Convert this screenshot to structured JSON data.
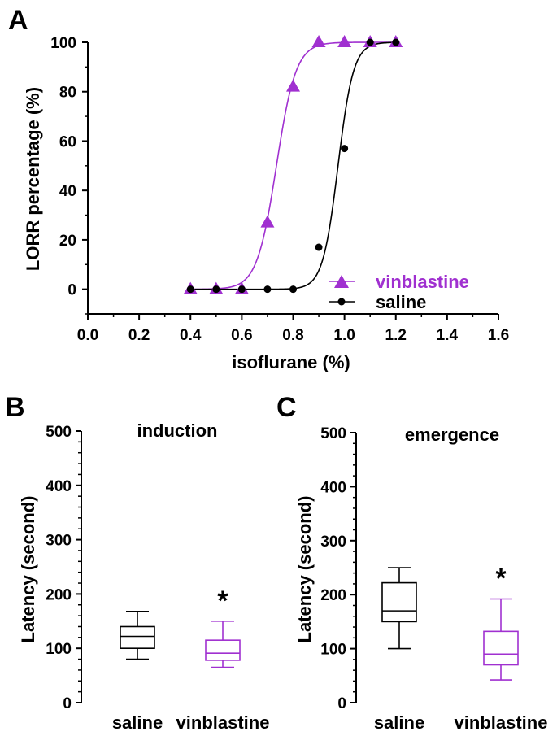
{
  "chart_data": [
    {
      "panel": "A",
      "type": "line",
      "title": "",
      "xlabel": "isoflurane (%)",
      "ylabel": "LORR percentage (%)",
      "xlim": [
        0.0,
        1.6
      ],
      "ylim": [
        -10,
        100
      ],
      "xticks": [
        "0.0",
        "0.2",
        "0.4",
        "0.6",
        "0.8",
        "1.0",
        "1.2",
        "1.4",
        "1.6"
      ],
      "yticks": [
        "0",
        "20",
        "40",
        "60",
        "80",
        "100"
      ],
      "legend": [
        "vinblastine",
        "saline"
      ],
      "legend_position": "bottom-right",
      "series": [
        {
          "name": "vinblastine",
          "color": "#a030d0",
          "marker": "triangle",
          "x": [
            0.4,
            0.5,
            0.6,
            0.7,
            0.8,
            0.9,
            1.0,
            1.1,
            1.2
          ],
          "y": [
            0,
            0,
            0,
            27,
            82,
            100,
            100,
            100,
            100
          ],
          "fit": {
            "ec50": 0.735,
            "hill": 0.038
          }
        },
        {
          "name": "saline",
          "color": "#000000",
          "marker": "circle",
          "x": [
            0.4,
            0.5,
            0.6,
            0.7,
            0.8,
            0.9,
            1.0,
            1.1,
            1.2
          ],
          "y": [
            0,
            0,
            0,
            0,
            0,
            17,
            57,
            100,
            100
          ],
          "fit": {
            "ec50": 0.975,
            "hill": 0.03
          }
        }
      ]
    },
    {
      "panel": "B",
      "type": "box",
      "title": "induction",
      "xlabel": "",
      "ylabel": "Latency (second)",
      "ylim": [
        0,
        500
      ],
      "yticks": [
        "0",
        "100",
        "200",
        "300",
        "400",
        "500"
      ],
      "categories": [
        "saline",
        "vinblastine"
      ],
      "boxes": [
        {
          "name": "saline",
          "color": "#000000",
          "min": 80,
          "q1": 100,
          "median": 122,
          "q3": 140,
          "max": 168
        },
        {
          "name": "vinblastine",
          "color": "#a030d0",
          "min": 65,
          "q1": 78,
          "median": 91,
          "q3": 115,
          "max": 150
        }
      ],
      "significance": [
        {
          "category": "vinblastine",
          "label": "*"
        }
      ]
    },
    {
      "panel": "C",
      "type": "box",
      "title": "emergence",
      "xlabel": "",
      "ylabel": "Latency (second)",
      "ylim": [
        0,
        500
      ],
      "yticks": [
        "0",
        "100",
        "200",
        "300",
        "400",
        "500"
      ],
      "categories": [
        "saline",
        "vinblastine"
      ],
      "boxes": [
        {
          "name": "saline",
          "color": "#000000",
          "min": 100,
          "q1": 150,
          "median": 170,
          "q3": 222,
          "max": 250
        },
        {
          "name": "vinblastine",
          "color": "#a030d0",
          "min": 42,
          "q1": 70,
          "median": 90,
          "q3": 132,
          "max": 192
        }
      ],
      "significance": [
        {
          "category": "vinblastine",
          "label": "*"
        }
      ]
    }
  ]
}
